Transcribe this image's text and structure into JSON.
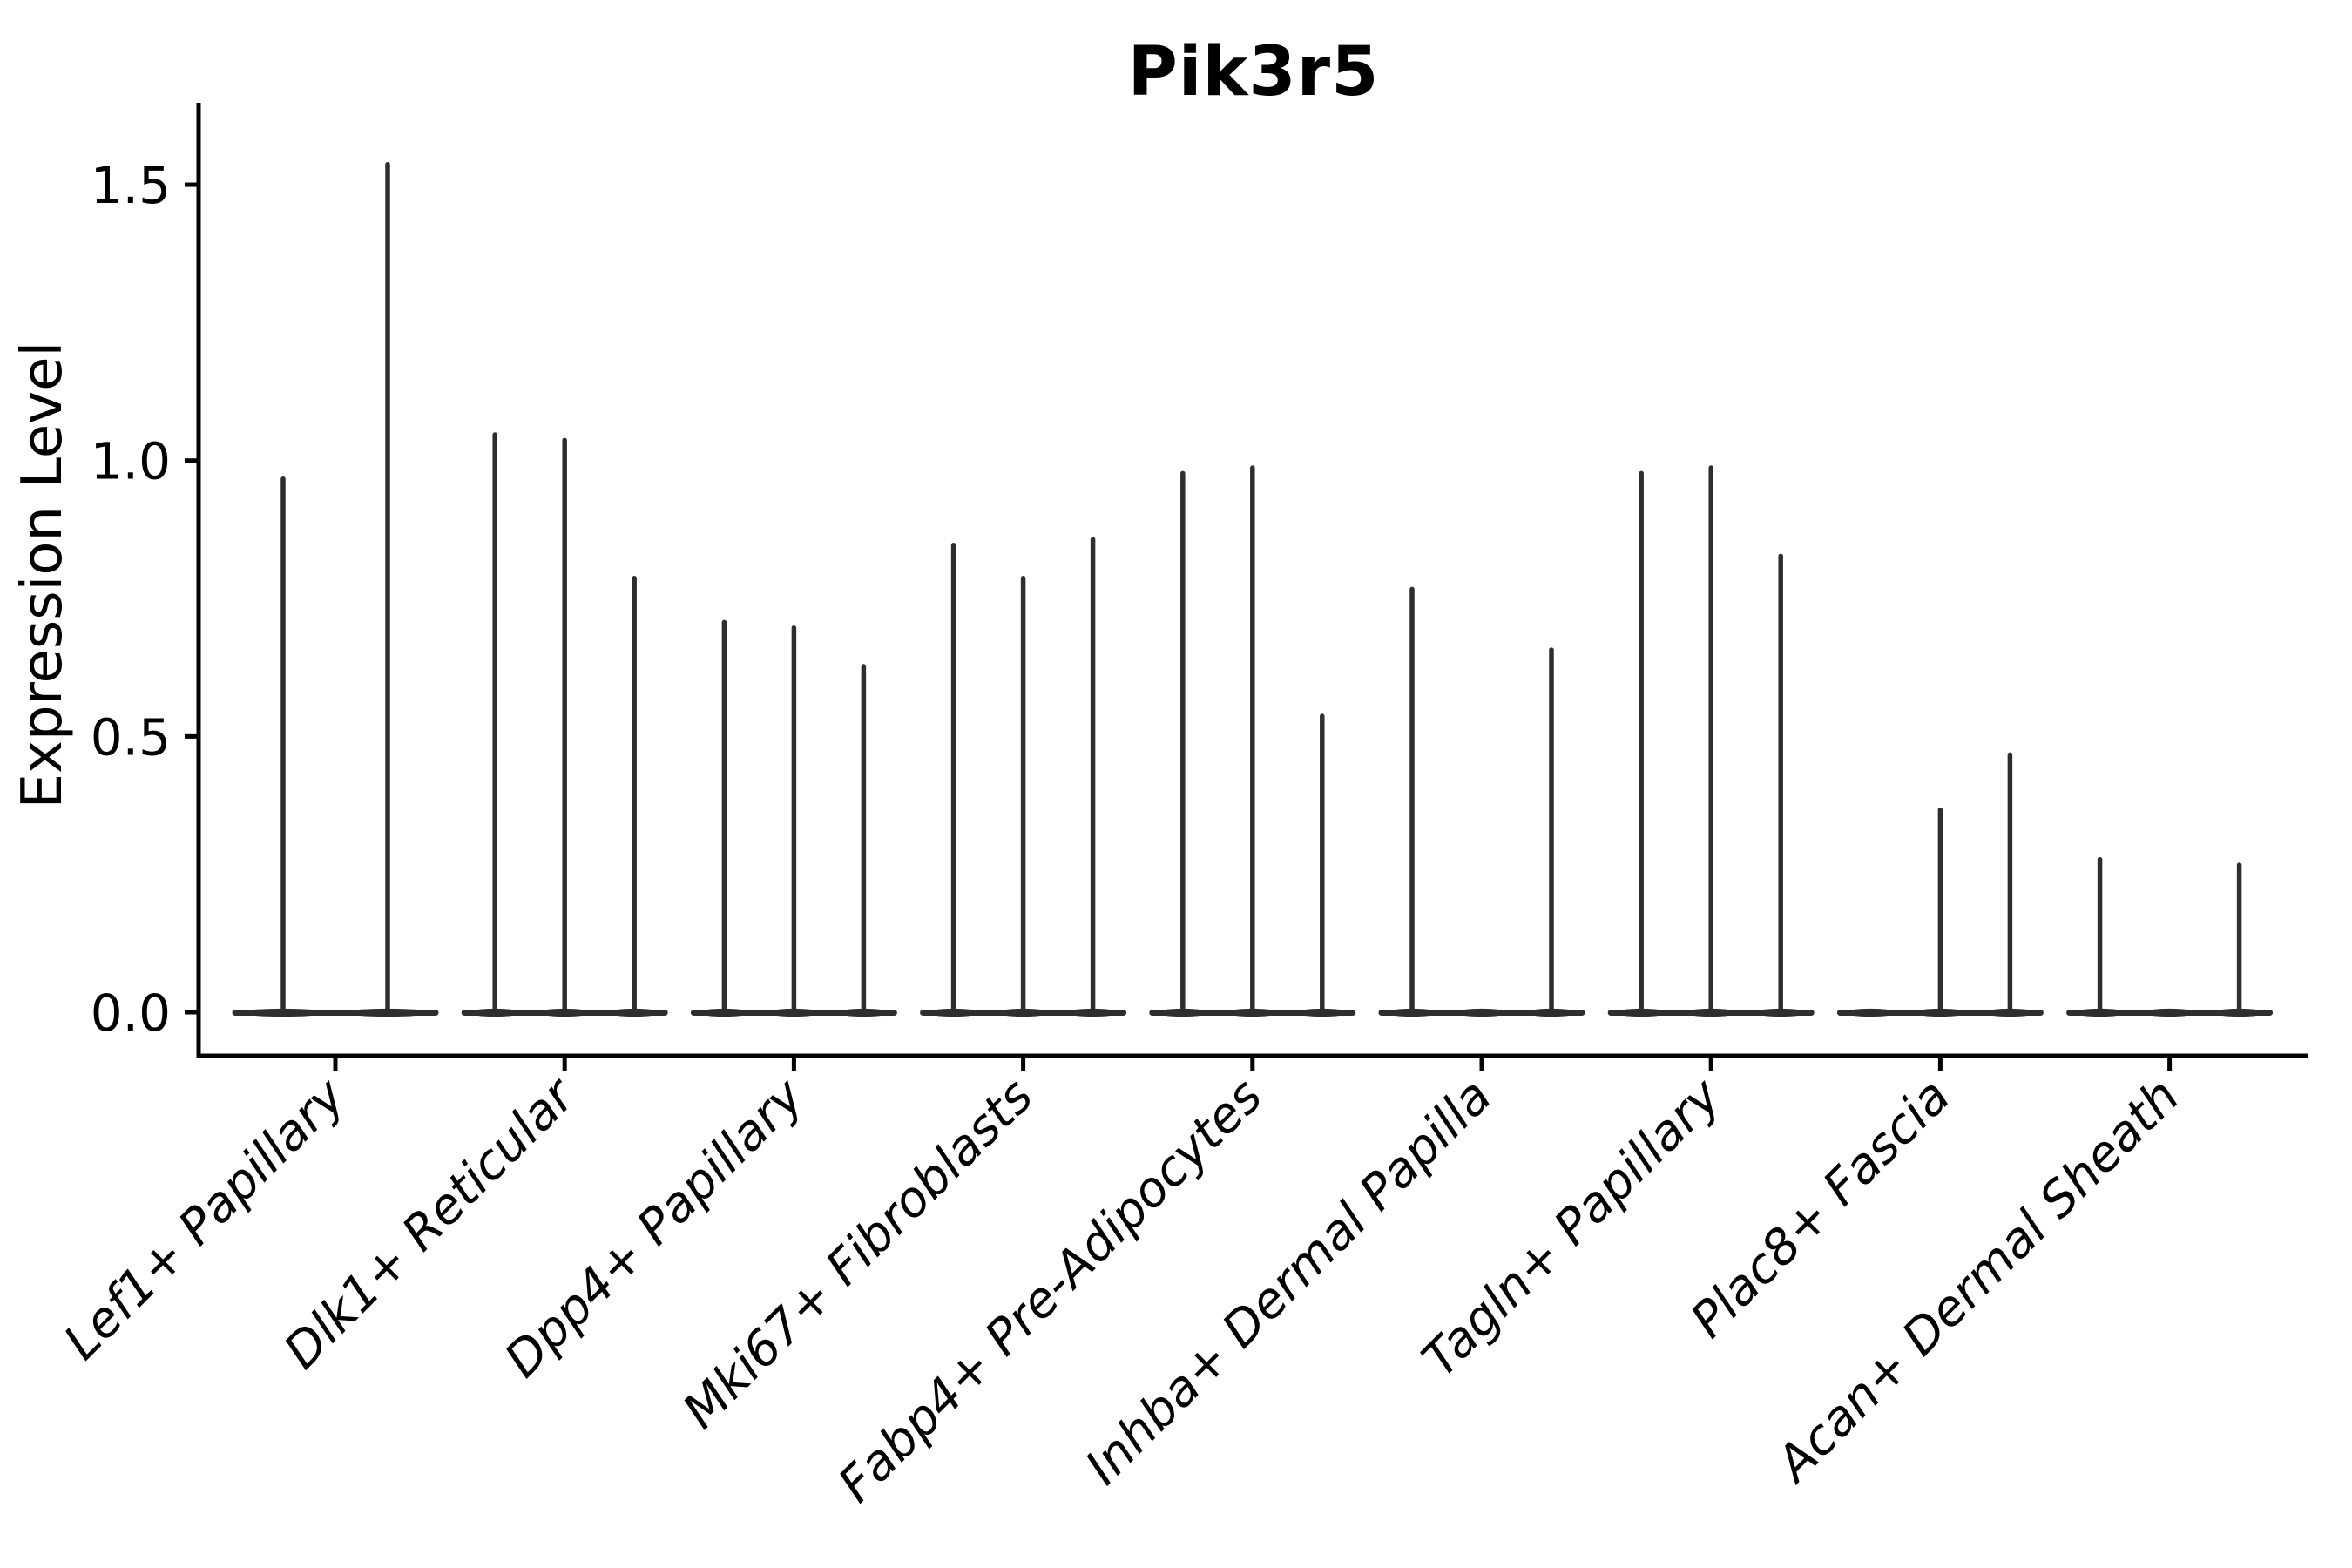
{
  "chart_data": {
    "type": "violin",
    "title": "Pik3r5",
    "ylabel": "Expression Level",
    "xlabel": "",
    "grid": false,
    "legend_position": "none",
    "ylim": [
      -0.08,
      1.65
    ],
    "ytick_labels": [
      "0.0",
      "0.5",
      "1.0",
      "1.5"
    ],
    "ytick_values": [
      0.0,
      0.5,
      1.0,
      1.5
    ],
    "categories": [
      {
        "label": "Lef1+ Papillary",
        "violin_peaks": [
          0.97,
          1.54
        ]
      },
      {
        "label": "Dlk1+ Reticular",
        "violin_peaks": [
          1.05,
          1.04,
          0.79
        ]
      },
      {
        "label": "Dpp4+ Papillary",
        "violin_peaks": [
          0.71,
          0.7,
          0.63
        ]
      },
      {
        "label": "Mki67+ Fibroblasts",
        "violin_peaks": [
          0.85,
          0.79,
          0.86
        ]
      },
      {
        "label": "Fabp4+ Pre-Adipocytes",
        "violin_peaks": [
          0.98,
          0.99,
          0.54
        ]
      },
      {
        "label": "Inhba+ Dermal Papilla",
        "violin_peaks": [
          0.77,
          null,
          0.66
        ]
      },
      {
        "label": "Tagln+ Papillary",
        "violin_peaks": [
          0.98,
          0.99,
          0.83
        ]
      },
      {
        "label": "Plac8+ Fascia",
        "violin_peaks": [
          null,
          0.37,
          0.47
        ]
      },
      {
        "label": "Acan+ Dermal Sheath",
        "violin_peaks": [
          0.28,
          null,
          0.27
        ]
      }
    ],
    "colors": {
      "violin": "#2e2e2e",
      "axis": "#000000",
      "text": "#000000",
      "background": "#ffffff"
    }
  }
}
